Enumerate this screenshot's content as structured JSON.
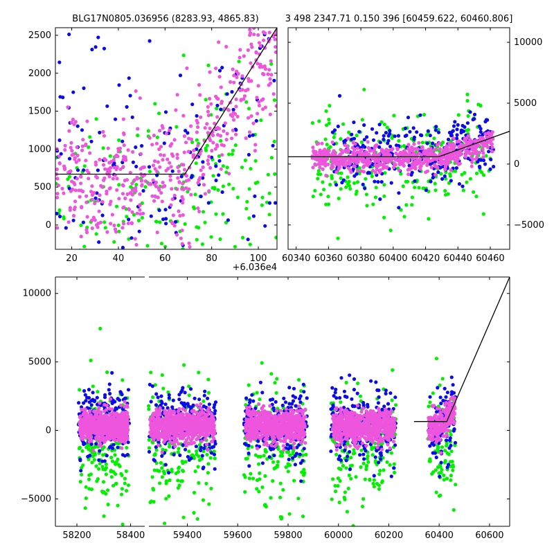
{
  "figure": {
    "title_left": "BLG17N0805.036956 (8283.93, 4865.83)",
    "title_right": "3 498 2347.71 0.150 396 [60459.622, 60460.806]",
    "offset_label": "+6.036e4"
  },
  "colors": {
    "series_a": "#0b0bea",
    "series_b": "#00f000",
    "series_c": "#ee55dd",
    "model": "#000000"
  },
  "chart_data": [
    {
      "type": "scatter",
      "panel": "top-left",
      "xlim": [
        13,
        108
      ],
      "ylim": [
        -320,
        2600
      ],
      "xticks": [
        20,
        40,
        60,
        80,
        100
      ],
      "xtick_labels": [
        "20",
        "40",
        "60",
        "80",
        "100"
      ],
      "yticks": [
        0,
        500,
        1000,
        1500,
        2000,
        2500
      ],
      "ytick_labels": [
        "0",
        "500",
        "1000",
        "1500",
        "2000",
        "2500"
      ],
      "xlabel": "",
      "ylabel": "",
      "grid": false,
      "model_line": {
        "x": [
          13,
          68.5,
          108
        ],
        "y": [
          670,
          670,
          2600
        ]
      }
    },
    {
      "type": "scatter",
      "panel": "top-right",
      "xlim": [
        60335,
        60472
      ],
      "ylim": [
        -7000,
        11200
      ],
      "xticks": [
        60340,
        60360,
        60380,
        60400,
        60420,
        60440,
        60460
      ],
      "xtick_labels": [
        "60340",
        "60360",
        "60380",
        "60400",
        "60420",
        "60440",
        "60460"
      ],
      "yticks": [
        -5000,
        0,
        5000,
        10000
      ],
      "ytick_labels": [
        "−5000",
        "0",
        "5000",
        "10000"
      ],
      "xlabel": "",
      "ylabel": "",
      "grid": false,
      "model_line": {
        "x": [
          60335,
          60428,
          60472
        ],
        "y": [
          600,
          600,
          2700
        ]
      }
    },
    {
      "type": "scatter",
      "panel": "bottom",
      "note_broken_axis": true,
      "segments": [
        {
          "xlim": [
            58120,
            58450
          ],
          "xticks": [
            58200,
            58400
          ],
          "xtick_labels": [
            "58200",
            "58400"
          ]
        },
        {
          "xlim": [
            59250,
            60680
          ],
          "xticks": [
            59400,
            59600,
            59800,
            60000,
            60200,
            60400,
            60600
          ],
          "xtick_labels": [
            "59400",
            "59600",
            "59800",
            "60000",
            "60200",
            "60400",
            "60600"
          ]
        }
      ],
      "ylim": [
        -7000,
        11200
      ],
      "yticks": [
        -5000,
        0,
        5000,
        10000
      ],
      "ytick_labels": [
        "−5000",
        "0",
        "5000",
        "10000"
      ],
      "xlabel": "",
      "ylabel": "",
      "grid": false,
      "seasons": [
        {
          "center": 58300,
          "halfwidth": 95
        },
        {
          "center": 59380,
          "halfwidth": 135
        },
        {
          "center": 59750,
          "halfwidth": 125
        },
        {
          "center": 60100,
          "halfwidth": 130
        },
        {
          "center": 60410,
          "halfwidth": 55
        }
      ],
      "model_line": {
        "x": [
          60300,
          60430,
          60680
        ],
        "y": [
          650,
          650,
          11200
        ]
      }
    }
  ]
}
